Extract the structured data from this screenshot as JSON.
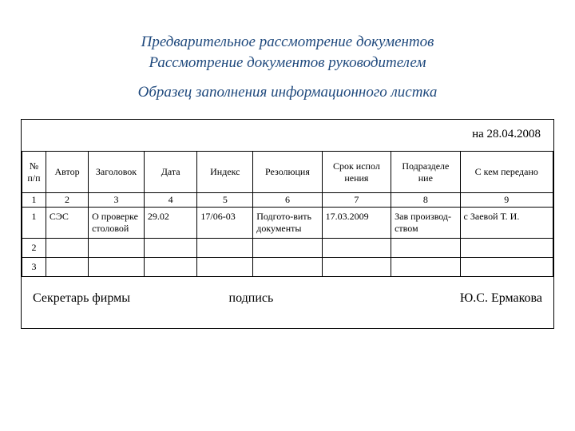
{
  "heading": {
    "line1": "Предварительное рассмотрение документов",
    "line2": "Рассмотрение документов руководителем",
    "subtitle": "Образец заполнения информационного листка",
    "color": "#1f497d",
    "fontsize": 19
  },
  "date_line": "на 28.04.2008",
  "table": {
    "columns": [
      "№ п/п",
      "Автор",
      "Заголовок",
      "Дата",
      "Индекс",
      "Резолюция",
      "Срок испол нения",
      "Подразделе ние",
      "С кем передано"
    ],
    "number_row": [
      "1",
      "2",
      "3",
      "4",
      "5",
      "6",
      "7",
      "8",
      "9"
    ],
    "data_rows": [
      [
        "1",
        "СЭС",
        "О проверке столовой",
        "29.02",
        "17/06-03",
        "Подгото-вить документы",
        "17.03.2009",
        "Зав производ-ством",
        "с Заевой Т. И."
      ],
      [
        "2",
        "",
        "",
        "",
        "",
        "",
        "",
        "",
        ""
      ],
      [
        "3",
        "",
        "",
        "",
        "",
        "",
        "",
        "",
        ""
      ]
    ],
    "col_widths_pct": [
      4.5,
      8,
      10.5,
      10,
      10.5,
      13,
      13,
      13,
      17.5
    ],
    "border_color": "#000000",
    "header_fontsize": 12,
    "cell_fontsize": 12
  },
  "footer": {
    "left": "Секретарь фирмы",
    "mid": "подпись",
    "right": "Ю.С. Ермакова",
    "fontsize": 16
  }
}
